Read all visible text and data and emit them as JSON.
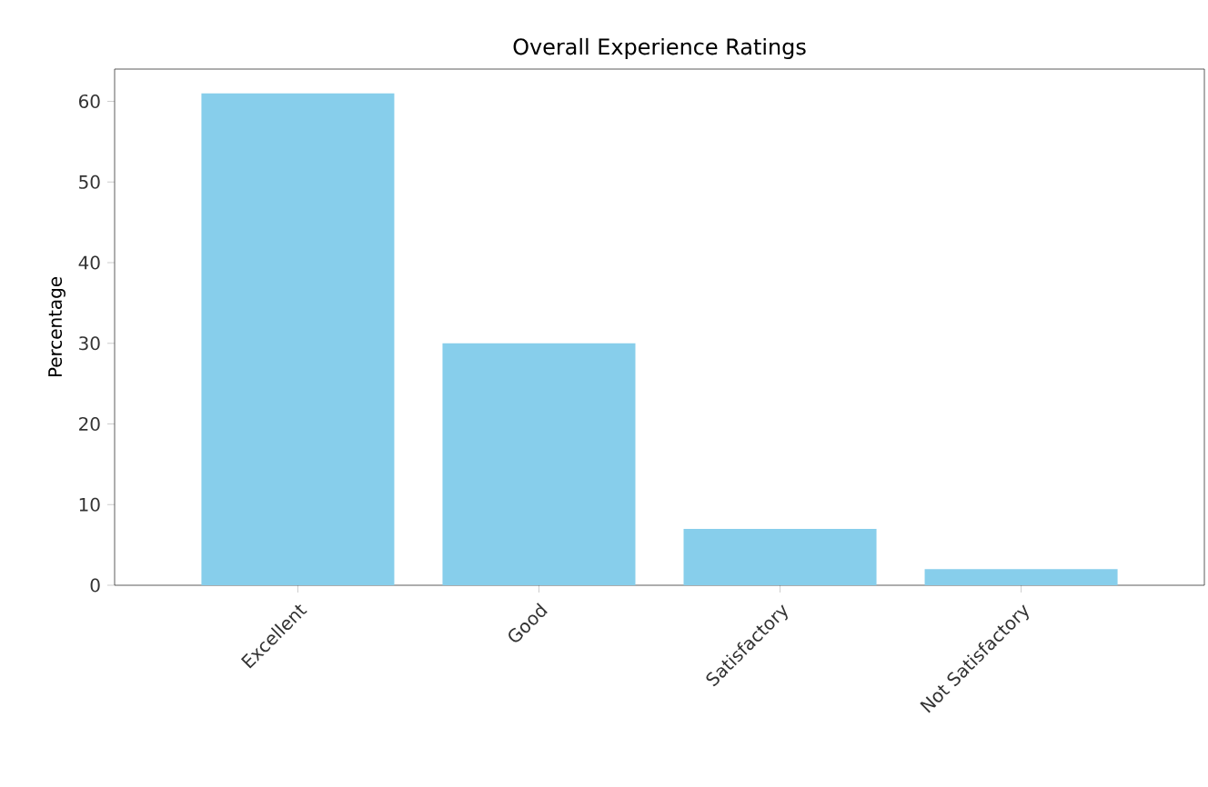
{
  "chart_data": {
    "type": "bar",
    "title": "Overall Experience Ratings",
    "ylabel": "Percentage",
    "categories": [
      "Excellent",
      "Good",
      "Satisfactory",
      "Not Satisfactory"
    ],
    "values": [
      61,
      30,
      7,
      2
    ],
    "color": "#87ceeb",
    "ylim": [
      0,
      64
    ],
    "yticks": [
      0,
      10,
      20,
      30,
      40,
      50,
      60
    ]
  }
}
